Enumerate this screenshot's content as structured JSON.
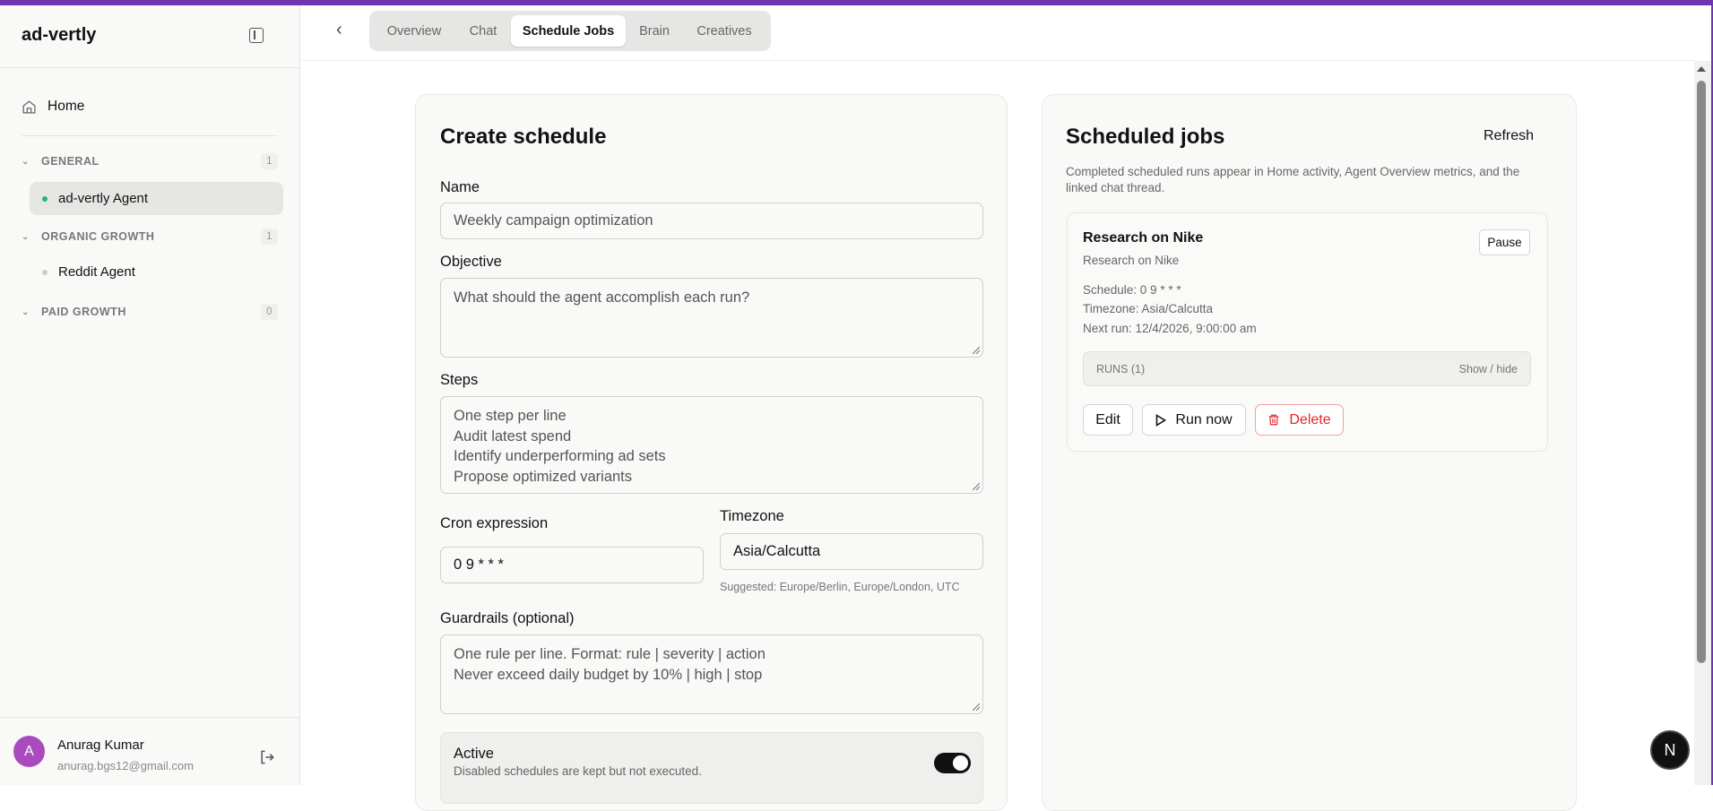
{
  "sidebar": {
    "brand": "ad-vertly",
    "home": "Home",
    "groups": [
      {
        "label": "GENERAL",
        "count": "1"
      },
      {
        "label": "ORGANIC GROWTH",
        "count": "1"
      },
      {
        "label": "PAID GROWTH",
        "count": "0"
      }
    ],
    "agents": [
      {
        "label": "ad-vertly Agent",
        "status_color": "#22b573",
        "active": true
      },
      {
        "label": "Reddit Agent",
        "status_color": "#cccccc",
        "active": false
      }
    ],
    "user": {
      "initial": "A",
      "name": "Anurag Kumar",
      "email": "anurag.bgs12@gmail.com",
      "avatar_color": "#a94bbf"
    }
  },
  "tabs": [
    {
      "label": "Overview"
    },
    {
      "label": "Chat"
    },
    {
      "label": "Schedule Jobs",
      "active": true
    },
    {
      "label": "Brain"
    },
    {
      "label": "Creatives"
    }
  ],
  "create": {
    "title": "Create schedule",
    "name_label": "Name",
    "name_placeholder": "Weekly campaign optimization",
    "objective_label": "Objective",
    "objective_placeholder": "What should the agent accomplish each run?",
    "steps_label": "Steps",
    "steps_placeholder": [
      "One step per line",
      "Audit latest spend",
      "Identify underperforming ad sets",
      "Propose optimized variants"
    ],
    "cron_label": "Cron expression",
    "cron_value": "0 9 * * *",
    "timezone_label": "Timezone",
    "timezone_value": "Asia/Calcutta",
    "timezone_hint": "Suggested: Europe/Berlin, Europe/London, UTC",
    "guardrails_label": "Guardrails (optional)",
    "guardrails_placeholder": [
      "One rule per line. Format: rule | severity | action",
      "Never exceed daily budget by 10% | high | stop"
    ],
    "active_label": "Active",
    "active_desc": "Disabled schedules are kept but not executed.",
    "active_on": true
  },
  "jobs": {
    "title": "Scheduled jobs",
    "refresh": "Refresh",
    "description": "Completed scheduled runs appear in Home activity, Agent Overview metrics, and the linked chat thread.",
    "items": [
      {
        "name": "Research on Nike",
        "objective": "Research on Nike",
        "schedule": "Schedule: 0 9 * * *",
        "timezone": "Timezone: Asia/Calcutta",
        "next_run": "Next run: 12/4/2026, 9:00:00 am",
        "pause": "Pause",
        "runs": "RUNS (1)",
        "show_hide": "Show / hide",
        "edit": "Edit",
        "run_now": "Run now",
        "delete": "Delete"
      }
    ]
  },
  "fab": "N",
  "colors": {
    "accent": "#6f35b0",
    "danger": "#e5252a"
  }
}
